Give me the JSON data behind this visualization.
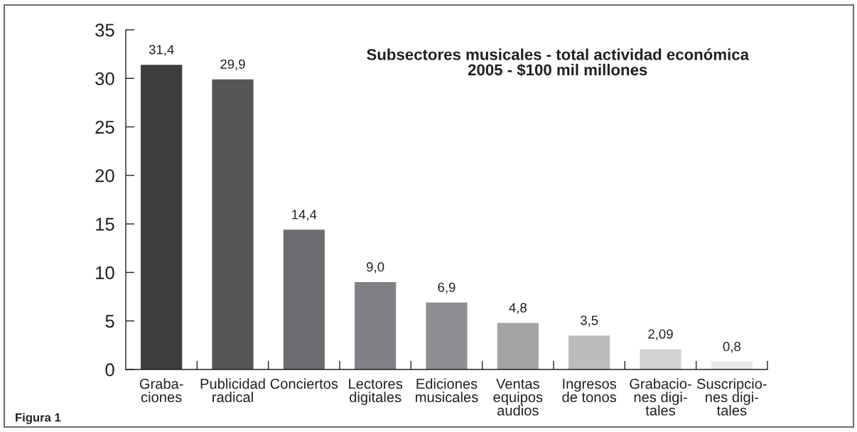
{
  "chart_data": {
    "type": "bar",
    "title": "Subsectores musicales - total actividad económica\n2005 - $100 mil millones",
    "categories": [
      "Graba-\nciones",
      "Publicidad\nradical",
      "Conciertos",
      "Lectores\ndigitales",
      "Ediciones\nmusicales",
      "Ventas\nequipos\naudios",
      "Ingresos\nde tonos",
      "Grabacio-\nnes digi-\ntales",
      "Suscripcio-\nnes digi-\ntales"
    ],
    "values": [
      31.4,
      29.9,
      14.4,
      9.0,
      6.9,
      4.8,
      3.5,
      2.09,
      0.8
    ],
    "colors": [
      "#3d3d3d",
      "#555658",
      "#6b6c6f",
      "#808184",
      "#8e8f92",
      "#a3a4a6",
      "#bbbcbe",
      "#d1d2d4",
      "#e6e7e8"
    ],
    "value_labels": [
      "31,4",
      "29,9",
      "14,4",
      "9,0",
      "6,9",
      "4,8",
      "3,5",
      "2,09",
      "0,8"
    ],
    "ylim": [
      0,
      35
    ],
    "yticks": [
      0,
      5,
      10,
      15,
      20,
      25,
      30,
      35
    ],
    "annotations": [
      "Figura 1"
    ]
  }
}
